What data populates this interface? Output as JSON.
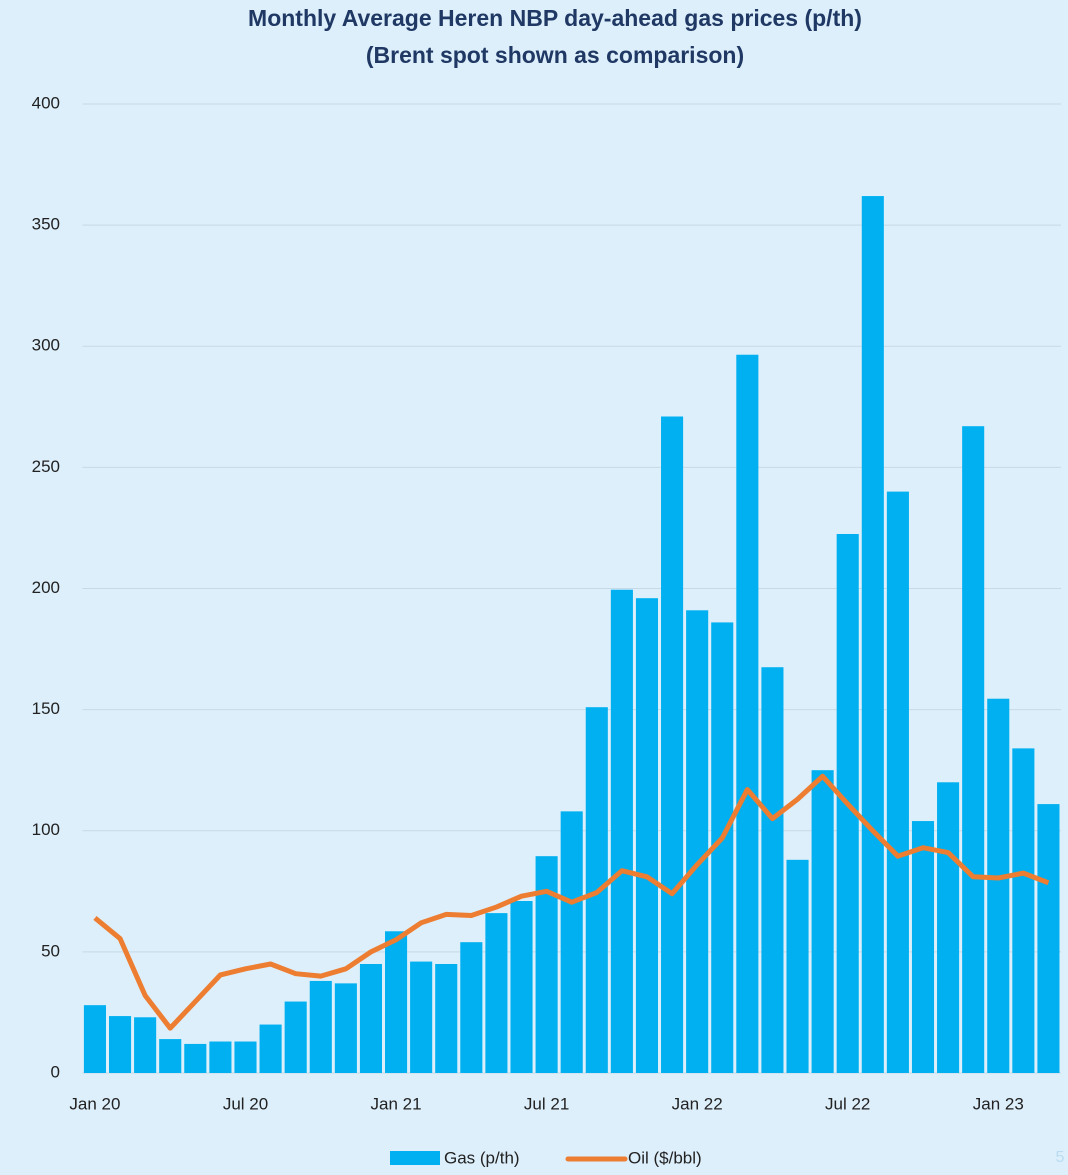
{
  "chart_data": {
    "type": "bar_line",
    "title": "Monthly Average Heren NBP day-ahead gas prices (p/th)",
    "subtitle": "(Brent spot shown as comparison)",
    "categories": [
      "Jan 20",
      null,
      null,
      null,
      null,
      null,
      "Jul 20",
      null,
      null,
      null,
      null,
      null,
      "Jan 21",
      null,
      null,
      null,
      null,
      null,
      "Jul 21",
      null,
      null,
      null,
      null,
      null,
      "Jan 22",
      null,
      null,
      null,
      null,
      null,
      "Jul 22",
      null,
      null,
      null,
      null,
      null,
      "Jan 23",
      null,
      null
    ],
    "series": [
      {
        "name": "Gas (p/th)",
        "type": "bar",
        "color": "#00b0f0",
        "values": [
          28,
          23.5,
          23,
          14,
          12,
          13,
          13,
          20,
          29.5,
          38,
          37,
          45,
          58.5,
          46,
          45,
          54,
          66,
          71,
          89.5,
          108,
          151,
          199.5,
          196,
          271,
          191,
          186,
          296.5,
          167.5,
          88,
          125,
          222.5,
          362,
          240,
          104,
          120,
          267,
          154.5,
          134,
          111
        ]
      },
      {
        "name": "Oil ($/bbl)",
        "type": "line",
        "color": "#ed7d31",
        "values": [
          64,
          55.5,
          32,
          18.5,
          29.5,
          40.5,
          43,
          45,
          41,
          40,
          43,
          50,
          55,
          62,
          65.5,
          65,
          68.5,
          73,
          75,
          70.5,
          74.5,
          83.5,
          81,
          74,
          86,
          97,
          117,
          105,
          113,
          122.5,
          111,
          100,
          89.5,
          93,
          91,
          81,
          80.5,
          82.5,
          78.5
        ]
      }
    ],
    "ylim": [
      0,
      400
    ],
    "yticks": [
      0,
      50,
      100,
      150,
      200,
      250,
      300,
      350,
      400
    ],
    "grid": true,
    "legend": "bottom"
  },
  "page_number": "5"
}
